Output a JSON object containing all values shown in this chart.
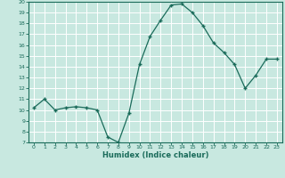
{
  "x": [
    0,
    1,
    2,
    3,
    4,
    5,
    6,
    7,
    8,
    9,
    10,
    11,
    12,
    13,
    14,
    15,
    16,
    17,
    18,
    19,
    20,
    21,
    22,
    23
  ],
  "y": [
    10.2,
    11.0,
    10.0,
    10.2,
    10.3,
    10.2,
    10.0,
    7.5,
    7.0,
    9.7,
    14.2,
    16.8,
    18.3,
    19.7,
    19.8,
    19.0,
    17.8,
    16.2,
    15.3,
    14.2,
    12.0,
    13.2,
    14.7,
    14.7
  ],
  "xlabel": "Humidex (Indice chaleur)",
  "ylim": [
    7,
    20
  ],
  "xlim": [
    -0.5,
    23.5
  ],
  "yticks": [
    7,
    8,
    9,
    10,
    11,
    12,
    13,
    14,
    15,
    16,
    17,
    18,
    19,
    20
  ],
  "xticks": [
    0,
    1,
    2,
    3,
    4,
    5,
    6,
    7,
    8,
    9,
    10,
    11,
    12,
    13,
    14,
    15,
    16,
    17,
    18,
    19,
    20,
    21,
    22,
    23
  ],
  "line_color": "#1a6b5a",
  "marker": "+",
  "bg_color": "#c8e8e0",
  "grid_color": "#ffffff",
  "tick_label_color": "#1a6b5a",
  "xlabel_color": "#1a6b5a",
  "axis_color": "#1a6b5a"
}
